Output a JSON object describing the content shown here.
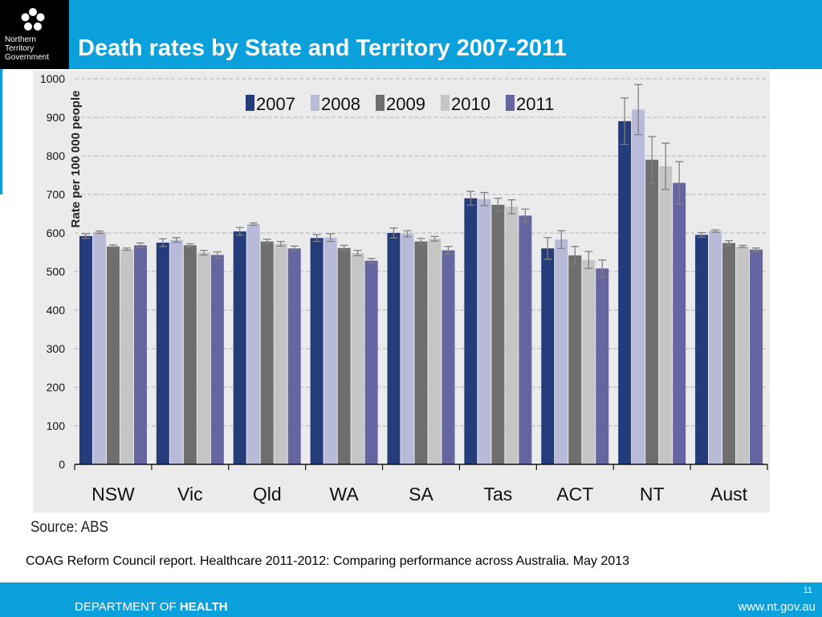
{
  "header": {
    "title": "Death rates by State and Territory 2007-2011",
    "logo_lines": [
      "Northern",
      "Territory",
      "Government"
    ],
    "brand_color": "#0aa0dc"
  },
  "chart_data": {
    "type": "bar",
    "ylabel": "Rate per 100 000 people",
    "xlabel": "",
    "ylim": [
      0,
      1000
    ],
    "yticks": [
      0,
      100,
      200,
      300,
      400,
      500,
      600,
      700,
      800,
      900,
      1000
    ],
    "grid": true,
    "legend_position": "top",
    "error_bars": true,
    "categories": [
      "NSW",
      "Vic",
      "Qld",
      "WA",
      "SA",
      "Tas",
      "ACT",
      "NT",
      "Aust"
    ],
    "series": [
      {
        "name": "2007",
        "color": "#243b7c",
        "values": [
          592,
          575,
          604,
          587,
          600,
          690,
          560,
          890,
          595
        ],
        "errors": [
          6,
          10,
          10,
          9,
          13,
          18,
          28,
          60,
          6
        ]
      },
      {
        "name": "2008",
        "color": "#b9b9d8",
        "values": [
          602,
          582,
          623,
          588,
          598,
          688,
          583,
          920,
          605
        ],
        "errors": [
          3,
          6,
          3,
          10,
          8,
          17,
          23,
          65,
          3
        ]
      },
      {
        "name": "2009",
        "color": "#6e6e6e",
        "values": [
          565,
          568,
          578,
          561,
          578,
          673,
          542,
          790,
          574
        ],
        "errors": [
          4,
          4,
          6,
          7,
          8,
          17,
          23,
          60,
          6
        ]
      },
      {
        "name": "2010",
        "color": "#c5c5c5",
        "values": [
          558,
          549,
          572,
          548,
          585,
          668,
          530,
          773,
          565
        ],
        "errors": [
          3,
          6,
          6,
          7,
          6,
          18,
          22,
          60,
          3
        ]
      },
      {
        "name": "2011",
        "color": "#6565a1",
        "values": [
          568,
          543,
          560,
          528,
          555,
          645,
          508,
          730,
          557
        ],
        "errors": [
          6,
          8,
          6,
          6,
          10,
          17,
          22,
          55,
          4
        ]
      }
    ]
  },
  "source": "Source: ABS",
  "caption": "COAG Reform Council report. Healthcare 2011-2012: Comparing performance across Australia.  May 2013",
  "footer": {
    "page_number": "11",
    "department_prefix": "DEPARTMENT OF ",
    "department_name": "HEALTH",
    "website": "www.nt.gov.au"
  }
}
